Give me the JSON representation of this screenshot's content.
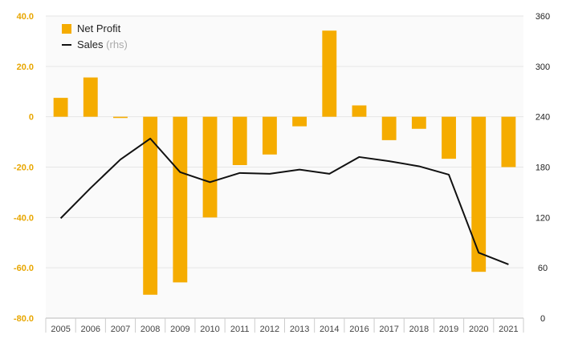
{
  "chart_data": {
    "type": "bar",
    "categories": [
      "2005",
      "2006",
      "2007",
      "2008",
      "2009",
      "2010",
      "2011",
      "2012",
      "2013",
      "2014",
      "2016",
      "2017",
      "2018",
      "2019",
      "2020",
      "2021"
    ],
    "series": [
      {
        "name": "Net Profit",
        "type": "bar",
        "axis": "left",
        "values": [
          7.5,
          15.6,
          -0.5,
          -70.7,
          -65.8,
          -40.0,
          -19.2,
          -15.0,
          -3.8,
          34.2,
          4.5,
          -9.3,
          -4.8,
          -16.7,
          -61.6,
          -20.0
        ]
      },
      {
        "name": "Sales",
        "name_suffix": "(rhs)",
        "type": "line",
        "axis": "right",
        "values": [
          119,
          155,
          189,
          214,
          174,
          162,
          173,
          172,
          177,
          172,
          192,
          187,
          181,
          171,
          78,
          64
        ]
      }
    ],
    "y_left": {
      "range": [
        -80,
        40
      ],
      "ticks": [
        "40.0",
        "20.0",
        "0",
        "-20.0",
        "-40.0",
        "-60.0",
        "-80.0"
      ]
    },
    "y_right": {
      "range": [
        0,
        360
      ],
      "ticks": [
        "360",
        "300",
        "240",
        "180",
        "120",
        "60",
        "0"
      ]
    },
    "grid": true,
    "legend_position": "top-left",
    "colors": {
      "bar": "#F5AC00",
      "line": "#111111",
      "left_axis_text": "#E8A600",
      "right_axis_text": "#222222",
      "x_axis_text": "#444444",
      "grid": "#E6E6E6",
      "plot_bg": "#FAFAFA",
      "legend_suffix": "#AAAAAA"
    }
  }
}
